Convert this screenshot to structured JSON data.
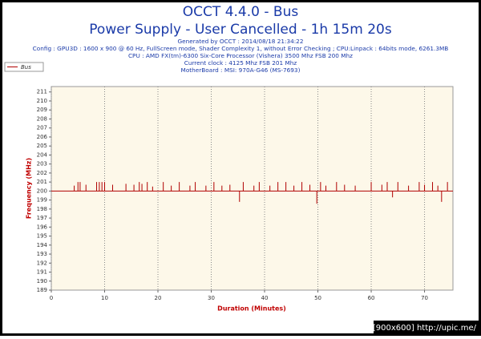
{
  "chart_data": {
    "type": "line",
    "title": "OCCT 4.4.0 - Bus",
    "subtitle": "Power Supply - User Cancelled - 1h 15m 20s",
    "info": [
      "Generated by OCCT : 2014/08/18 21:34:22",
      "Config : GPU3D : 1600 x 900 @ 60 Hz, FullScreen mode, Shader Complexity 1, without Error Checking ; CPU:Linpack : 64bits mode, 6261.3MB",
      "CPU : AMD FX(tm)-6300 Six-Core Processor (Vishera) 3500 Mhz FSB 200 Mhz",
      "Current clock : 4125 Mhz FSB 201 Mhz",
      "MotherBoard : MSI: 970A-G46 (MS-7693)"
    ],
    "x_label": "Duration (Minutes)",
    "y_label": "Frequency (MHz)",
    "watermark": "[900x600] http://upic.me/",
    "xlim": [
      0,
      75.33
    ],
    "xticks": [
      0,
      10,
      20,
      30,
      40,
      50,
      60,
      70
    ],
    "ylim": [
      189,
      211.6
    ],
    "yticks": [
      189,
      190,
      191,
      192,
      193,
      194,
      195,
      196,
      197,
      198,
      199,
      200,
      201,
      202,
      203,
      204,
      205,
      206,
      207,
      208,
      209,
      210,
      211
    ],
    "grid": true,
    "legend": "top-left",
    "x": [
      0,
      4.3,
      4.3,
      4.3,
      5,
      5,
      5,
      5.4,
      5.4,
      5.4,
      6.5,
      6.5,
      6.5,
      8.5,
      8.5,
      8.5,
      9,
      9,
      9,
      9.5,
      9.5,
      9.5,
      10,
      10,
      10,
      11.5,
      11.5,
      11.5,
      14,
      14,
      14,
      15.5,
      15.5,
      15.5,
      16.5,
      16.5,
      16.5,
      17,
      17,
      17,
      18,
      18,
      18,
      19,
      19,
      19,
      21,
      21,
      21,
      22.5,
      22.5,
      22.5,
      24,
      24,
      24,
      26,
      26,
      26,
      27,
      27,
      27,
      29,
      29,
      29,
      30.5,
      30.5,
      30.5,
      32,
      32,
      32,
      33.5,
      33.5,
      33.5,
      35.3,
      35.3,
      35.3,
      36,
      36,
      36,
      38,
      38,
      38,
      39,
      39,
      39,
      41,
      41,
      41,
      42.5,
      42.5,
      42.5,
      44,
      44,
      44,
      45.5,
      45.5,
      45.5,
      47,
      47,
      47,
      48.5,
      48.5,
      48.5,
      49.8,
      49.8,
      49.8,
      50.5,
      50.5,
      50.5,
      51.5,
      51.5,
      51.5,
      53.5,
      53.5,
      53.5,
      55,
      55,
      55,
      57,
      57,
      57,
      60,
      60,
      60,
      62,
      62,
      62,
      63,
      63,
      63,
      64,
      64,
      64,
      65,
      65,
      65,
      67,
      67,
      67,
      69,
      69,
      69,
      70,
      70,
      70,
      71.5,
      71.5,
      71.5,
      72.5,
      72.5,
      72.5,
      73.2,
      73.2,
      73.2,
      74.3,
      74.3,
      74.3,
      75.33
    ],
    "series": [
      {
        "name": "Bus",
        "color": "#b00000",
        "values": [
          200,
          200,
          200.6,
          200,
          200,
          201,
          200,
          200,
          201,
          200,
          200,
          200.7,
          200,
          200,
          201,
          200,
          200,
          201,
          200,
          200,
          201,
          200,
          200,
          201,
          200,
          200,
          200.7,
          200,
          200,
          200.8,
          200,
          200,
          200.7,
          200,
          200,
          201,
          200,
          200,
          200.8,
          200,
          200,
          201,
          200,
          200,
          200.5,
          200,
          200,
          201,
          200,
          200,
          200.6,
          200,
          200,
          201,
          200,
          200,
          200.6,
          200,
          200,
          201,
          200,
          200,
          200.6,
          200,
          200,
          201,
          200,
          200,
          200.6,
          200,
          200,
          200.7,
          200,
          200,
          198.8,
          200,
          200,
          201,
          200,
          200,
          200.6,
          200,
          200,
          201,
          200,
          200,
          200.6,
          200,
          200,
          201,
          200,
          200,
          201,
          200,
          200,
          200.6,
          200,
          200,
          201,
          200,
          200,
          200.7,
          200,
          200,
          198.6,
          200,
          200,
          201,
          200,
          200,
          200.6,
          200,
          200,
          201,
          200,
          200,
          200.7,
          200,
          200,
          200.6,
          200,
          200,
          201,
          200,
          200,
          200.7,
          200,
          200,
          201,
          200,
          200,
          199.3,
          200,
          200,
          201,
          200,
          200,
          200.6,
          200,
          200,
          201,
          200,
          200,
          200.7,
          200,
          200,
          201,
          200,
          200,
          200.6,
          200,
          200,
          198.8,
          200,
          200,
          201,
          200,
          200
        ]
      }
    ]
  }
}
